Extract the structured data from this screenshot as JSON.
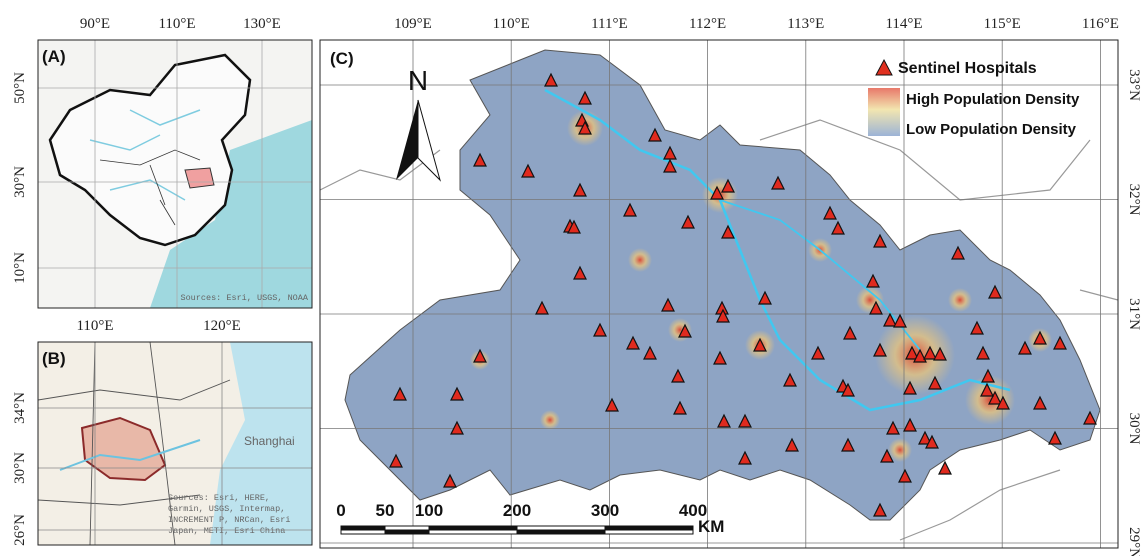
{
  "panel_a": {
    "label": "(A)",
    "lon_labels": [
      "90°E",
      "110°E",
      "130°E"
    ],
    "lat_labels": [
      "50°N",
      "30°N",
      "10°N"
    ],
    "source": "Sources: Esri, USGS, NOAA"
  },
  "panel_b": {
    "label": "(B)",
    "lon_labels": [
      "110°E",
      "120°E"
    ],
    "lat_labels": [
      "34°N",
      "30°N",
      "26°N"
    ],
    "place": "Shanghai",
    "source_lines": [
      "Sources: Esri, HERE,",
      "Garmin, USGS, Intermap,",
      "INCREMENT P, NRCan, Esri",
      "Japan, METI, Esri China"
    ]
  },
  "panel_c": {
    "label": "(C)",
    "lon_labels": [
      "109°E",
      "110°E",
      "111°E",
      "112°E",
      "113°E",
      "114°E",
      "115°E",
      "116°E"
    ],
    "lat_labels": [
      "33°N",
      "32°N",
      "31°N",
      "30°N",
      "29°N"
    ],
    "north": "N",
    "legend": {
      "hospitals": "Sentinel Hospitals",
      "high": "High Population Density",
      "low": "Low  Population Density"
    },
    "scale": {
      "ticks": [
        "0",
        "50",
        "100",
        "200",
        "300",
        "400"
      ],
      "unit": "KM"
    }
  }
}
